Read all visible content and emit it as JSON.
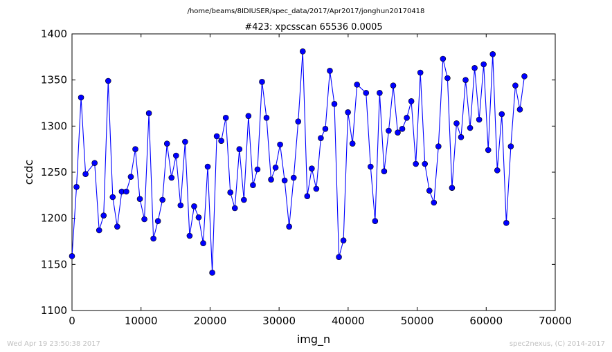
{
  "header": {
    "path": "/home/beams/8IDIUSER/spec_data/2017/Apr2017/jonghun20170418"
  },
  "footer": {
    "timestamp": "Wed Apr 19 23:50:38 2017",
    "credit": "spec2nexus, (C) 2014-2017"
  },
  "chart_data": {
    "type": "line",
    "title": "#423: xpcsscan 65536 0.0005",
    "xlabel": "img_n",
    "ylabel": "ccdc",
    "xlim": [
      0,
      70000
    ],
    "ylim": [
      1100,
      1400
    ],
    "xticks": [
      0,
      10000,
      20000,
      30000,
      40000,
      50000,
      60000,
      70000
    ],
    "yticks": [
      1100,
      1150,
      1200,
      1250,
      1300,
      1350,
      1400
    ],
    "grid": false,
    "legend": "none",
    "line_color": "#0000ff",
    "marker": "circle",
    "series": [
      {
        "x": [
          0,
          656,
          1311,
          1966,
          3277,
          3932,
          4587,
          5243,
          5898,
          6554,
          7209,
          7864,
          8520,
          9175,
          9830,
          10486,
          11141,
          11796,
          12452,
          13107,
          13762,
          14418,
          15073,
          15728,
          16384,
          17039,
          17694,
          18350,
          19005,
          19660,
          20316,
          20971,
          21626,
          22282,
          22937,
          23592,
          24248,
          24903,
          25559,
          26214,
          26869,
          27525,
          28180,
          28836,
          29491,
          30146,
          30802,
          31457,
          32112,
          32768,
          33423,
          34078,
          34734,
          35389,
          36044,
          36700,
          37355,
          38010,
          38666,
          39321,
          39976,
          40632,
          41287,
          42598,
          43253,
          43909,
          44564,
          45219,
          45875,
          46530,
          47185,
          47841,
          48496,
          49151,
          49807,
          50462,
          51117,
          51773,
          52428,
          53083,
          53739,
          54394,
          55049,
          55705,
          56360,
          57015,
          57671,
          58326,
          58982,
          59637,
          60292,
          60948,
          61603,
          62258,
          62914,
          63569,
          64224,
          64880,
          65535
        ],
        "y": [
          1159,
          1234,
          1331,
          1248,
          1260,
          1187,
          1203,
          1349,
          1223,
          1191,
          1229,
          1229,
          1245,
          1275,
          1221,
          1199,
          1314,
          1178,
          1197,
          1220,
          1281,
          1244,
          1268,
          1214,
          1283,
          1181,
          1213,
          1201,
          1173,
          1256,
          1141,
          1289,
          1284,
          1309,
          1228,
          1211,
          1275,
          1220,
          1311,
          1236,
          1253,
          1348,
          1309,
          1242,
          1255,
          1280,
          1241,
          1191,
          1244,
          1305,
          1381,
          1224,
          1254,
          1232,
          1287,
          1297,
          1360,
          1324,
          1158,
          1176,
          1315,
          1281,
          1345,
          1336,
          1256,
          1197,
          1336,
          1251,
          1295,
          1344,
          1293,
          1297,
          1309,
          1327,
          1259,
          1358,
          1259,
          1230,
          1217,
          1278,
          1373,
          1352,
          1233,
          1303,
          1288,
          1350,
          1298,
          1363,
          1307,
          1367,
          1274,
          1378,
          1252,
          1313,
          1195,
          1278,
          1344,
          1318,
          1354
        ]
      }
    ]
  }
}
